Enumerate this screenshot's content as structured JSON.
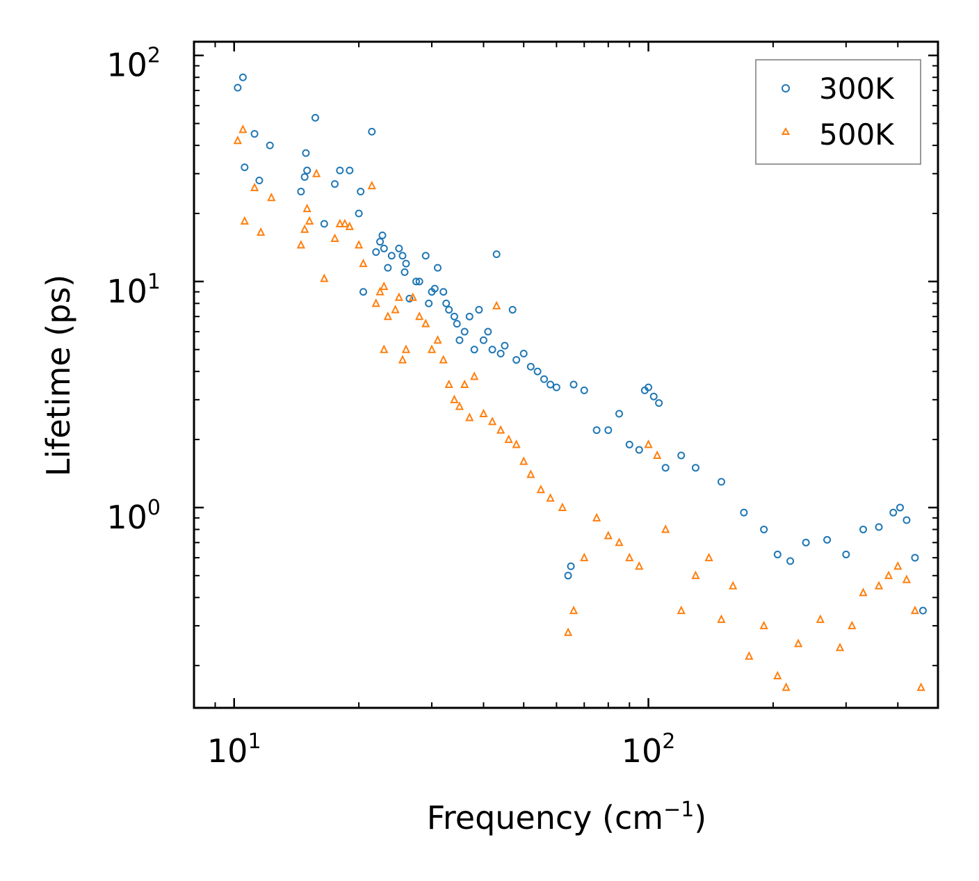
{
  "chart_data": {
    "type": "scatter",
    "title": "",
    "xlabel": "Frequency (cm",
    "xlabel_sup": "−1",
    "xlabel_tail": ")",
    "ylabel": "Lifetime (ps)",
    "xscale": "log",
    "yscale": "log",
    "xlim": [
      8,
      500
    ],
    "ylim": [
      0.13,
      115
    ],
    "x_ticks": [
      {
        "value": 10,
        "base": "10",
        "exp": "1"
      },
      {
        "value": 100,
        "base": "10",
        "exp": "2"
      }
    ],
    "y_ticks": [
      {
        "value": 1,
        "base": "10",
        "exp": "0"
      },
      {
        "value": 10,
        "base": "10",
        "exp": "1"
      },
      {
        "value": 100,
        "base": "10",
        "exp": "2"
      }
    ],
    "legend_position": "top-right",
    "series": [
      {
        "name": "300K",
        "marker": "circle",
        "color": "#1f77b4",
        "points": [
          [
            10.2,
            72
          ],
          [
            10.5,
            80
          ],
          [
            10.6,
            32
          ],
          [
            11.2,
            45
          ],
          [
            11.5,
            28
          ],
          [
            12.2,
            40
          ],
          [
            14.5,
            25
          ],
          [
            14.8,
            29
          ],
          [
            14.9,
            37
          ],
          [
            15.0,
            31
          ],
          [
            15.7,
            53
          ],
          [
            16.5,
            18
          ],
          [
            17.5,
            27
          ],
          [
            18.0,
            31
          ],
          [
            19.0,
            31
          ],
          [
            20.0,
            20
          ],
          [
            20.2,
            25
          ],
          [
            20.5,
            9
          ],
          [
            21.5,
            46
          ],
          [
            22.0,
            13.5
          ],
          [
            22.5,
            15
          ],
          [
            22.8,
            16
          ],
          [
            23.0,
            14
          ],
          [
            23.5,
            11.5
          ],
          [
            24.0,
            13
          ],
          [
            25.0,
            14
          ],
          [
            25.5,
            13
          ],
          [
            26.0,
            12
          ],
          [
            25.8,
            11
          ],
          [
            26.5,
            8.4
          ],
          [
            27.5,
            10
          ],
          [
            28.0,
            10
          ],
          [
            29.0,
            13
          ],
          [
            29.5,
            8
          ],
          [
            30.0,
            9
          ],
          [
            30.5,
            9.3
          ],
          [
            31.0,
            11.5
          ],
          [
            32.0,
            9
          ],
          [
            32.5,
            8
          ],
          [
            33.0,
            7.5
          ],
          [
            34.0,
            7
          ],
          [
            34.5,
            6.5
          ],
          [
            35.0,
            5.5
          ],
          [
            36.0,
            6
          ],
          [
            37.0,
            7
          ],
          [
            38.0,
            5
          ],
          [
            39.0,
            7.5
          ],
          [
            40.0,
            5.5
          ],
          [
            41.0,
            6
          ],
          [
            42.0,
            5
          ],
          [
            43.0,
            13.2
          ],
          [
            44.0,
            4.8
          ],
          [
            45.0,
            5.2
          ],
          [
            47.0,
            7.5
          ],
          [
            48.0,
            4.5
          ],
          [
            50.0,
            4.8
          ],
          [
            52.0,
            4.2
          ],
          [
            54.0,
            4
          ],
          [
            56.0,
            3.7
          ],
          [
            58.0,
            3.5
          ],
          [
            60.0,
            3.4
          ],
          [
            64.0,
            0.5
          ],
          [
            65.0,
            0.55
          ],
          [
            66.0,
            3.5
          ],
          [
            70.0,
            3.3
          ],
          [
            75.0,
            2.2
          ],
          [
            80.0,
            2.2
          ],
          [
            85.0,
            2.6
          ],
          [
            90.0,
            1.9
          ],
          [
            95.0,
            1.8
          ],
          [
            98.0,
            3.3
          ],
          [
            100.0,
            3.4
          ],
          [
            103.0,
            3.1
          ],
          [
            106.0,
            2.9
          ],
          [
            110.0,
            1.5
          ],
          [
            120.0,
            1.7
          ],
          [
            130.0,
            1.5
          ],
          [
            150.0,
            1.3
          ],
          [
            170.0,
            0.95
          ],
          [
            190.0,
            0.8
          ],
          [
            205.0,
            0.62
          ],
          [
            220.0,
            0.58
          ],
          [
            240.0,
            0.7
          ],
          [
            270.0,
            0.72
          ],
          [
            300.0,
            0.62
          ],
          [
            330.0,
            0.8
          ],
          [
            360.0,
            0.82
          ],
          [
            390.0,
            0.95
          ],
          [
            405.0,
            1.0
          ],
          [
            420.0,
            0.88
          ],
          [
            440.0,
            0.6
          ],
          [
            460.0,
            0.35
          ]
        ]
      },
      {
        "name": "500K",
        "marker": "triangle",
        "color": "#ff7f0e",
        "points": [
          [
            10.2,
            42
          ],
          [
            10.5,
            47
          ],
          [
            10.6,
            18.5
          ],
          [
            11.2,
            26
          ],
          [
            11.6,
            16.5
          ],
          [
            12.3,
            23.5
          ],
          [
            14.5,
            14.5
          ],
          [
            14.8,
            17
          ],
          [
            15.0,
            21
          ],
          [
            15.2,
            18.5
          ],
          [
            15.8,
            30
          ],
          [
            16.5,
            10.3
          ],
          [
            17.5,
            15.5
          ],
          [
            18.0,
            18
          ],
          [
            18.5,
            18
          ],
          [
            19.0,
            17.5
          ],
          [
            20.0,
            14.5
          ],
          [
            20.5,
            12
          ],
          [
            21.5,
            26.5
          ],
          [
            22.0,
            8
          ],
          [
            22.5,
            9
          ],
          [
            23.0,
            9.5
          ],
          [
            23.0,
            5
          ],
          [
            23.5,
            7
          ],
          [
            24.5,
            7.5
          ],
          [
            25.0,
            8.5
          ],
          [
            25.5,
            4.5
          ],
          [
            26.0,
            5
          ],
          [
            27.0,
            8.5
          ],
          [
            28.0,
            7
          ],
          [
            29.0,
            6.5
          ],
          [
            30.0,
            5
          ],
          [
            31.0,
            5.5
          ],
          [
            32.0,
            4.5
          ],
          [
            33.0,
            3.5
          ],
          [
            34.0,
            3
          ],
          [
            35.0,
            2.8
          ],
          [
            36.0,
            3.5
          ],
          [
            37.0,
            2.5
          ],
          [
            38.0,
            3.8
          ],
          [
            40.0,
            2.6
          ],
          [
            42.0,
            2.4
          ],
          [
            43.0,
            7.8
          ],
          [
            44.0,
            2.2
          ],
          [
            46.0,
            2
          ],
          [
            48.0,
            1.9
          ],
          [
            50.0,
            1.6
          ],
          [
            52.0,
            1.4
          ],
          [
            55.0,
            1.2
          ],
          [
            58.0,
            1.1
          ],
          [
            62.0,
            1
          ],
          [
            64.0,
            0.28
          ],
          [
            66.0,
            0.35
          ],
          [
            70.0,
            0.6
          ],
          [
            75.0,
            0.9
          ],
          [
            80.0,
            0.75
          ],
          [
            85.0,
            0.7
          ],
          [
            90.0,
            0.6
          ],
          [
            95.0,
            0.55
          ],
          [
            100.0,
            1.9
          ],
          [
            105.0,
            1.7
          ],
          [
            110.0,
            0.8
          ],
          [
            120.0,
            0.35
          ],
          [
            130.0,
            0.5
          ],
          [
            140.0,
            0.6
          ],
          [
            150.0,
            0.32
          ],
          [
            160.0,
            0.45
          ],
          [
            175.0,
            0.22
          ],
          [
            190.0,
            0.3
          ],
          [
            205.0,
            0.18
          ],
          [
            215.0,
            0.16
          ],
          [
            230.0,
            0.25
          ],
          [
            260.0,
            0.32
          ],
          [
            290.0,
            0.24
          ],
          [
            310.0,
            0.3
          ],
          [
            330.0,
            0.42
          ],
          [
            360.0,
            0.45
          ],
          [
            380.0,
            0.5
          ],
          [
            400.0,
            0.55
          ],
          [
            420.0,
            0.48
          ],
          [
            440.0,
            0.35
          ],
          [
            455.0,
            0.16
          ]
        ]
      }
    ]
  }
}
